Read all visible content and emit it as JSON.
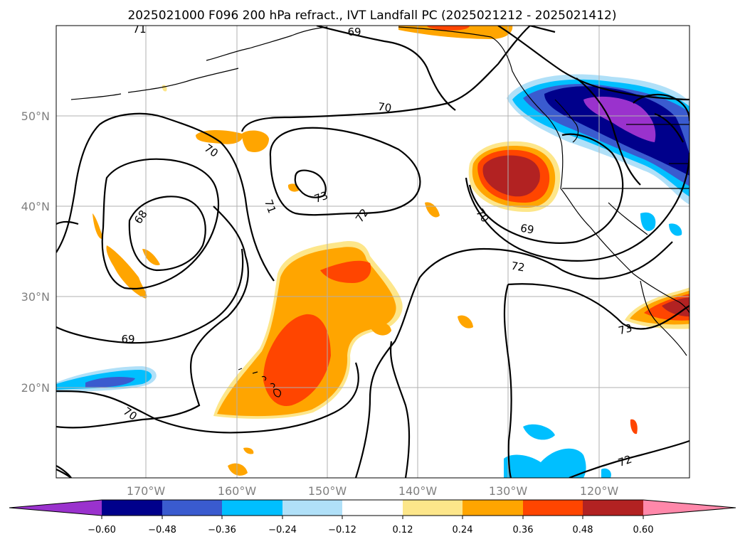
{
  "title": "2025021000 F096 200 hPa refract., IVT Landfall PC (2025021212 - 2025021412)",
  "map": {
    "lat_labels": [
      "50°N",
      "40°N",
      "30°N",
      "20°N"
    ],
    "lon_labels": [
      "170°W",
      "160°W",
      "150°W",
      "140°W",
      "130°W",
      "120°W"
    ],
    "contour_labels": [
      "71",
      "69",
      "70",
      "70",
      "73",
      "72",
      "68",
      "71",
      "70",
      "69",
      "72",
      "69",
      "73",
      "70",
      "72"
    ],
    "gridlines": true,
    "fill_colors": {
      "neg_060": "#9a32cd",
      "neg_048": "#00008b",
      "neg_036": "#3a5bcf",
      "neg_024": "#00bfff",
      "neg_012": "#b0e0f8",
      "pos_012": "#fde68a",
      "pos_024": "#ffa500",
      "pos_036": "#ff4500",
      "pos_048": "#b22222",
      "pos_060": "#ff88aa"
    }
  },
  "colorbar": {
    "ticks": [
      "−0.60",
      "−0.48",
      "−0.36",
      "−0.24",
      "−0.12",
      "0.12",
      "0.24",
      "0.36",
      "0.48",
      "0.60"
    ],
    "colors": [
      "#9a32cd",
      "#00008b",
      "#3a5bcf",
      "#00bfff",
      "#b0e0f8",
      "#ffffff",
      "#fde68a",
      "#ffa500",
      "#ff4500",
      "#b22222",
      "#ff88aa"
    ]
  }
}
